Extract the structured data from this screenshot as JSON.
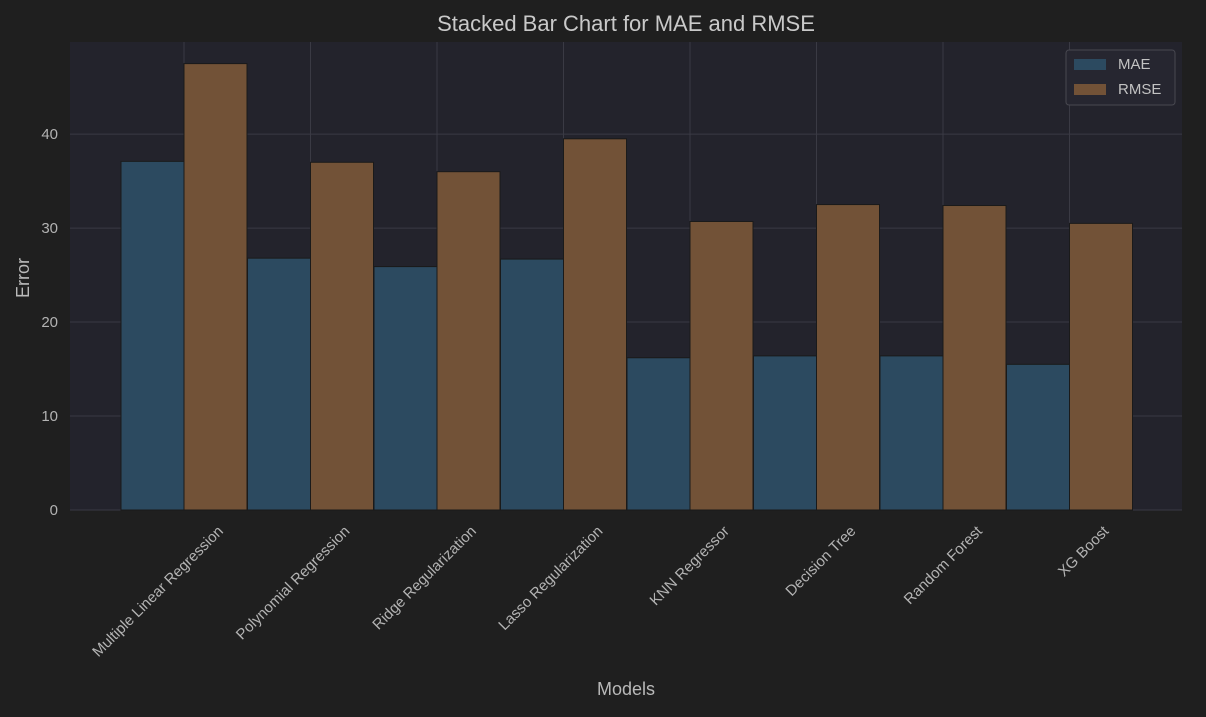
{
  "chart_data": {
    "type": "bar",
    "title": "Stacked Bar Chart for MAE and RMSE",
    "xlabel": "Models",
    "ylabel": "Error",
    "categories": [
      "Multiple Linear Regression",
      "Polynomial Regression",
      "Ridge Regularization",
      "Lasso Regularization",
      "KNN Regressor",
      "Decision Tree",
      "Random Forest",
      "XG Boost"
    ],
    "series": [
      {
        "name": "MAE",
        "color": "#2c4a60",
        "values": [
          37.1,
          26.8,
          25.9,
          26.7,
          16.2,
          16.4,
          16.4,
          15.5
        ]
      },
      {
        "name": "RMSE",
        "color": "#725237",
        "values": [
          47.5,
          37.0,
          36.0,
          39.5,
          30.7,
          32.5,
          32.4,
          30.5
        ]
      }
    ],
    "ylim": [
      0,
      49.8
    ],
    "yticks": [
      0,
      10,
      20,
      30,
      40
    ],
    "grid": true,
    "legend_position": "top-right",
    "colors": {
      "background": "#1f1f1f",
      "plot_background": "#23232c",
      "grid": "#3a3a44",
      "bar_edge": "#1a1a1a"
    }
  }
}
